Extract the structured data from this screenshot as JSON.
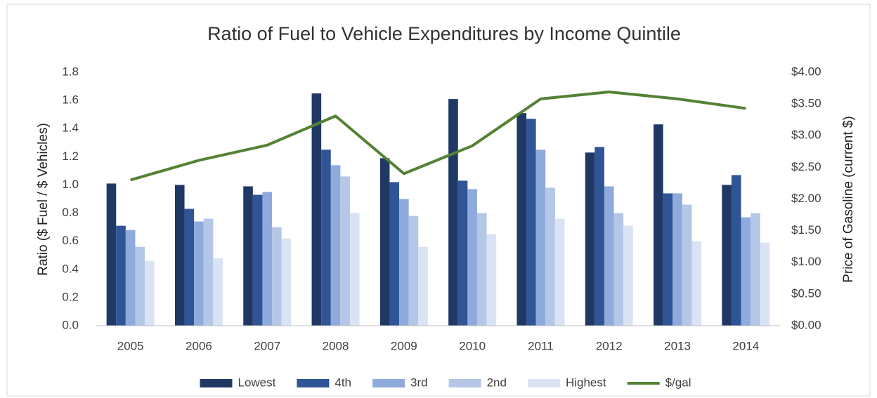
{
  "chart_data": {
    "type": "bar",
    "title": "Ratio of Fuel to Vehicle Expenditures by Income Quintile",
    "y_label": "Ratio ($ Fuel / $ Vehicles)",
    "y2_label": "Price of Gasoline (current $)",
    "categories": [
      "2005",
      "2006",
      "2007",
      "2008",
      "2009",
      "2010",
      "2011",
      "2012",
      "2013",
      "2014"
    ],
    "series": [
      {
        "name": "Lowest",
        "color": "#203864",
        "values": [
          1.01,
          1.0,
          0.99,
          1.65,
          1.19,
          1.61,
          1.51,
          1.23,
          1.43,
          1.0
        ]
      },
      {
        "name": "4th",
        "color": "#2f5597",
        "values": [
          0.71,
          0.83,
          0.93,
          1.25,
          1.02,
          1.03,
          1.47,
          1.27,
          0.94,
          1.07
        ]
      },
      {
        "name": "3rd",
        "color": "#8faadc",
        "values": [
          0.68,
          0.74,
          0.95,
          1.14,
          0.9,
          0.97,
          1.25,
          0.99,
          0.94,
          0.77
        ]
      },
      {
        "name": "2nd",
        "color": "#b4c7e7",
        "values": [
          0.56,
          0.76,
          0.7,
          1.06,
          0.78,
          0.8,
          0.98,
          0.8,
          0.86,
          0.8
        ]
      },
      {
        "name": "Highest",
        "color": "#dae3f3",
        "values": [
          0.46,
          0.48,
          0.62,
          0.8,
          0.56,
          0.65,
          0.76,
          0.71,
          0.6,
          0.59
        ]
      },
      {
        "name": "$/gal",
        "color": "#548235",
        "type": "line",
        "axis": "y2",
        "values": [
          2.3,
          2.61,
          2.85,
          3.31,
          2.4,
          2.84,
          3.58,
          3.69,
          3.58,
          3.43
        ]
      }
    ],
    "ylim": [
      0,
      1.8
    ],
    "yticks": [
      {
        "value": 0,
        "label": "0.0"
      },
      {
        "value": 0.2,
        "label": "0.2"
      },
      {
        "value": 0.4,
        "label": "0.4"
      },
      {
        "value": 0.6,
        "label": "0.6"
      },
      {
        "value": 0.8,
        "label": "0.8"
      },
      {
        "value": 1.0,
        "label": "1.0"
      },
      {
        "value": 1.2,
        "label": "1.2"
      },
      {
        "value": 1.4,
        "label": "1.4"
      },
      {
        "value": 1.6,
        "label": "1.6"
      },
      {
        "value": 1.8,
        "label": "1.8"
      }
    ],
    "y2lim": [
      0,
      4
    ],
    "y2ticks": [
      {
        "value": 0,
        "label": "$0.00"
      },
      {
        "value": 0.5,
        "label": "$0.50"
      },
      {
        "value": 1,
        "label": "$1.00"
      },
      {
        "value": 1.5,
        "label": "$1.50"
      },
      {
        "value": 2,
        "label": "$2.00"
      },
      {
        "value": 2.5,
        "label": "$2.50"
      },
      {
        "value": 3,
        "label": "$3.00"
      },
      {
        "value": 3.5,
        "label": "$3.50"
      },
      {
        "value": 4,
        "label": "$4.00"
      }
    ],
    "grid": false,
    "legend": "bottom"
  }
}
